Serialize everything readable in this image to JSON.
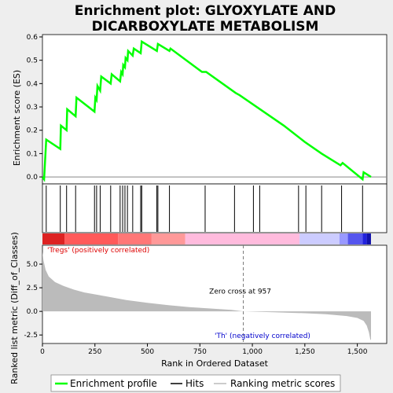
{
  "chart_data": {
    "type": "line",
    "title_line1": "Enrichment plot: GLYOXYLATE AND",
    "title_line2": "DICARBOXYLATE METABOLISM",
    "n_genes": 1560,
    "xlim": [
      0,
      1640
    ],
    "x_ticks": [
      0,
      250,
      500,
      750,
      1000,
      1250,
      1500
    ],
    "x_tick_labels": [
      "0",
      "250",
      "500",
      "750",
      "1,000",
      "1,250",
      "1,500"
    ],
    "xlabel": "Rank in Ordered Dataset",
    "es_panel": {
      "ylabel": "Enrichment score (ES)",
      "ylim": [
        -0.03,
        0.61
      ],
      "y_ticks": [
        0.0,
        0.1,
        0.2,
        0.3,
        0.4,
        0.5,
        0.6
      ],
      "y_tick_labels": [
        "0.0",
        "0.1",
        "0.2",
        "0.3",
        "0.4",
        "0.5",
        "0.6"
      ],
      "line_color": "#00ff00",
      "points": [
        [
          0,
          0.0
        ],
        [
          8,
          -0.01
        ],
        [
          18,
          0.16
        ],
        [
          85,
          0.12
        ],
        [
          88,
          0.22
        ],
        [
          115,
          0.2
        ],
        [
          118,
          0.29
        ],
        [
          158,
          0.26
        ],
        [
          162,
          0.34
        ],
        [
          248,
          0.28
        ],
        [
          252,
          0.34
        ],
        [
          258,
          0.33
        ],
        [
          262,
          0.39
        ],
        [
          275,
          0.37
        ],
        [
          280,
          0.43
        ],
        [
          325,
          0.4
        ],
        [
          330,
          0.44
        ],
        [
          370,
          0.41
        ],
        [
          375,
          0.45
        ],
        [
          382,
          0.44
        ],
        [
          385,
          0.48
        ],
        [
          393,
          0.47
        ],
        [
          396,
          0.51
        ],
        [
          405,
          0.5
        ],
        [
          408,
          0.54
        ],
        [
          430,
          0.52
        ],
        [
          435,
          0.55
        ],
        [
          468,
          0.53
        ],
        [
          473,
          0.58
        ],
        [
          545,
          0.54
        ],
        [
          550,
          0.57
        ],
        [
          605,
          0.54
        ],
        [
          610,
          0.55
        ],
        [
          760,
          0.45
        ],
        [
          780,
          0.45
        ],
        [
          920,
          0.36
        ],
        [
          940,
          0.35
        ],
        [
          1150,
          0.22
        ],
        [
          1250,
          0.15
        ],
        [
          1330,
          0.1
        ],
        [
          1420,
          0.05
        ],
        [
          1430,
          0.06
        ],
        [
          1525,
          -0.01
        ],
        [
          1530,
          0.02
        ],
        [
          1565,
          0.0
        ]
      ]
    },
    "hits": [
      18,
      85,
      115,
      158,
      248,
      258,
      275,
      325,
      370,
      382,
      393,
      405,
      430,
      468,
      473,
      545,
      550,
      605,
      775,
      915,
      1005,
      1035,
      1220,
      1255,
      1330,
      1425,
      1525
    ],
    "color_bar": [
      {
        "from": 0,
        "to": 105,
        "color": "#dd2222"
      },
      {
        "from": 105,
        "to": 360,
        "color": "#ff5a5a"
      },
      {
        "from": 360,
        "to": 520,
        "color": "#ff7777"
      },
      {
        "from": 520,
        "to": 680,
        "color": "#ff9999"
      },
      {
        "from": 680,
        "to": 1225,
        "color": "#ffbbdd"
      },
      {
        "from": 1225,
        "to": 1415,
        "color": "#ccccff"
      },
      {
        "from": 1415,
        "to": 1455,
        "color": "#9999ff"
      },
      {
        "from": 1455,
        "to": 1525,
        "color": "#5555ee"
      },
      {
        "from": 1525,
        "to": 1545,
        "color": "#2222dd"
      },
      {
        "from": 1545,
        "to": 1565,
        "color": "#1111aa"
      }
    ],
    "metric_panel": {
      "ylabel": "Ranked list metric (Diff_of_Classes)",
      "ylim": [
        -3.4,
        7.0
      ],
      "y_ticks": [
        -2.5,
        0.0,
        2.5,
        5.0
      ],
      "y_tick_labels": [
        "-2.5",
        "0.0",
        "2.5",
        "5.0"
      ],
      "fill_color": "#bbbbbb",
      "points": [
        [
          0,
          6.3
        ],
        [
          5,
          5.4
        ],
        [
          15,
          4.4
        ],
        [
          30,
          3.7
        ],
        [
          60,
          3.1
        ],
        [
          100,
          2.7
        ],
        [
          150,
          2.3
        ],
        [
          200,
          2.0
        ],
        [
          300,
          1.6
        ],
        [
          400,
          1.2
        ],
        [
          500,
          0.9
        ],
        [
          600,
          0.65
        ],
        [
          700,
          0.45
        ],
        [
          800,
          0.3
        ],
        [
          900,
          0.15
        ],
        [
          957,
          0.0
        ],
        [
          1100,
          -0.1
        ],
        [
          1250,
          -0.2
        ],
        [
          1350,
          -0.3
        ],
        [
          1450,
          -0.5
        ],
        [
          1500,
          -0.7
        ],
        [
          1530,
          -1.0
        ],
        [
          1545,
          -1.5
        ],
        [
          1555,
          -2.2
        ],
        [
          1562,
          -3.0
        ],
        [
          1565,
          -3.0
        ]
      ],
      "zero_cross": 957,
      "zero_cross_label": "Zero cross at 957",
      "pos_label": "'Tregs' (positively correlated)",
      "neg_label": "'Th' (negatively correlated)",
      "pos_label_color": "#dd0000",
      "neg_label_color": "#0000cc"
    },
    "legend": [
      {
        "label": "Enrichment profile",
        "color": "#00ff00"
      },
      {
        "label": "Hits",
        "color": "#000000"
      },
      {
        "label": "Ranking metric scores",
        "color": "#bbbbbb"
      }
    ]
  }
}
